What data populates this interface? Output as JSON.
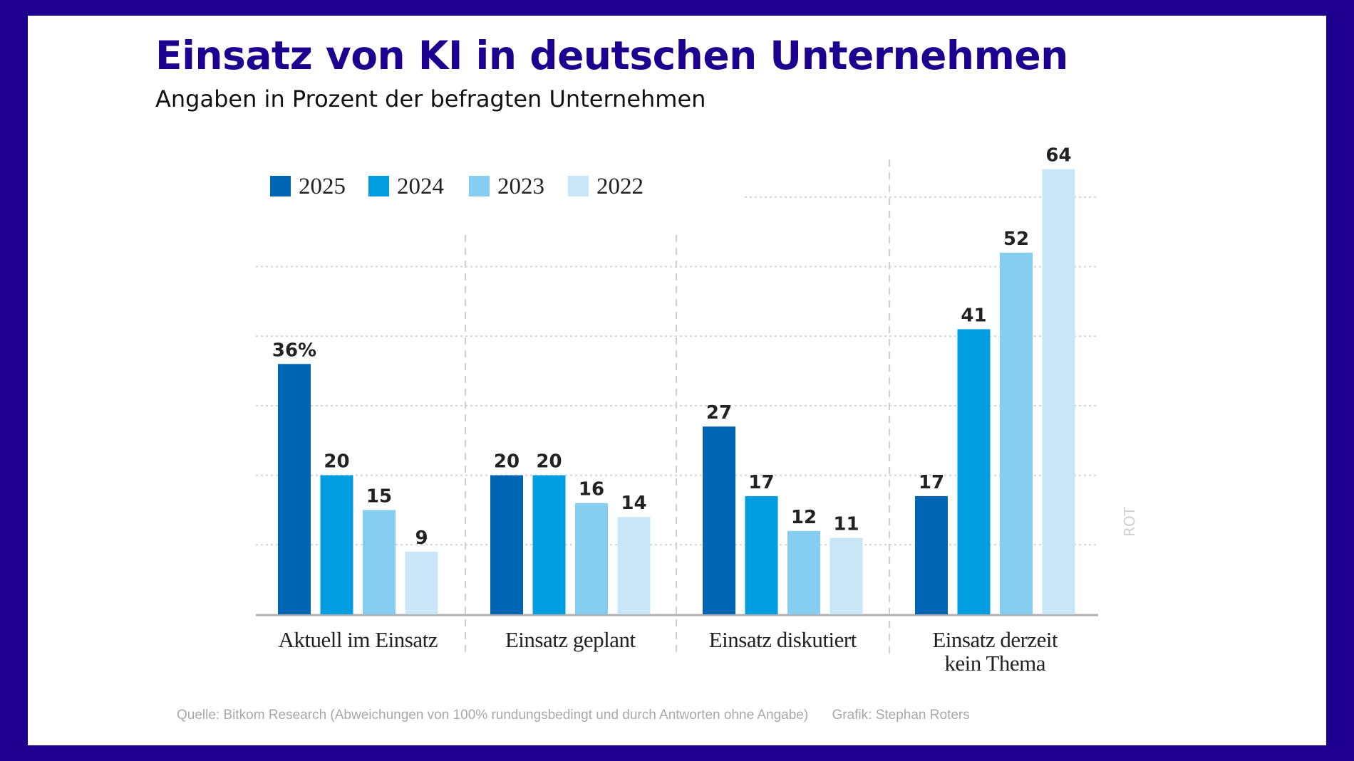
{
  "title": "Einsatz von KI in deutschen Unternehmen",
  "subtitle": "Angaben in Prozent der befragten Unternehmen",
  "footer": {
    "source": "Quelle: Bitkom Research (Abweichungen von 100% rundungsbedingt und durch Antworten ohne Angabe)",
    "credit": "Grafik: Stephan Roters"
  },
  "watermark": "ROT",
  "colors": {
    "frame": "#1e0090",
    "title": "#1e0090"
  },
  "chart_data": {
    "type": "bar",
    "title": "Einsatz von KI in deutschen Unternehmen",
    "subtitle": "Angaben in Prozent der befragten Unternehmen",
    "categories": [
      [
        "Aktuell im Einsatz"
      ],
      [
        "Einsatz geplant"
      ],
      [
        "Einsatz diskutiert"
      ],
      [
        "Einsatz derzeit",
        "kein Thema"
      ]
    ],
    "series": [
      {
        "name": "2025",
        "color": "#0066b3",
        "values": [
          36,
          20,
          27,
          17
        ]
      },
      {
        "name": "2024",
        "color": "#009de0",
        "values": [
          20,
          20,
          17,
          41
        ]
      },
      {
        "name": "2023",
        "color": "#86cdf2",
        "values": [
          15,
          16,
          12,
          52
        ]
      },
      {
        "name": "2022",
        "color": "#c8e6f8",
        "values": [
          9,
          14,
          11,
          64
        ]
      }
    ],
    "first_label_suffix": "%",
    "ylim": [
      0,
      64
    ],
    "grid": true,
    "grid_step": 10,
    "legend_placement": "top-left",
    "xlabel": "",
    "ylabel": ""
  }
}
